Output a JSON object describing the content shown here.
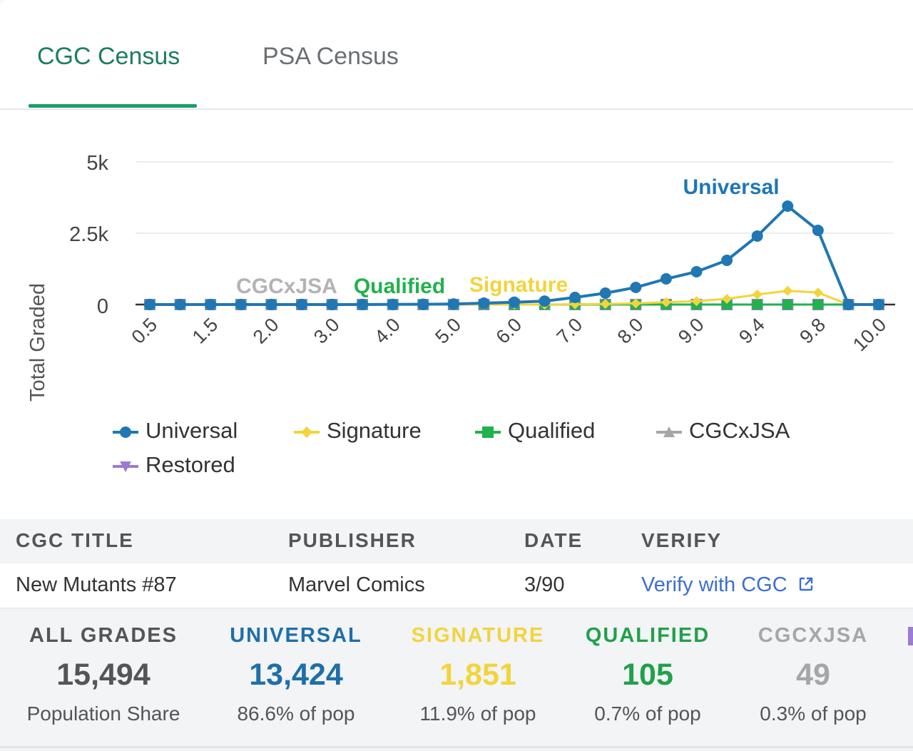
{
  "tabs": [
    {
      "label": "CGC Census",
      "active": true
    },
    {
      "label": "PSA Census",
      "active": false
    }
  ],
  "colors": {
    "universal": "#1f77b4",
    "signature": "#f2d43c",
    "qualified": "#22b14c",
    "cgcxjsa": "#a6a6a6",
    "restored": "#9b7bd4",
    "active_tab": "#1a7f5a"
  },
  "chart_data": {
    "type": "line",
    "ylabel": "Total Graded",
    "yticks": [
      "5k",
      "2.5k",
      "0"
    ],
    "ylim": [
      0,
      5000
    ],
    "x": [
      "0.5",
      "1.0",
      "1.5",
      "1.8",
      "2.0",
      "2.5",
      "3.0",
      "3.5",
      "4.0",
      "4.5",
      "5.0",
      "5.5",
      "6.0",
      "6.5",
      "7.0",
      "7.5",
      "8.0",
      "8.5",
      "9.0",
      "9.2",
      "9.4",
      "9.6",
      "9.8",
      "9.9",
      "10.0"
    ],
    "xtick_labels": [
      "0.5",
      "1.5",
      "2.0",
      "3.0",
      "4.0",
      "5.0",
      "6.0",
      "7.0",
      "8.0",
      "9.0",
      "9.4",
      "9.8",
      "10.0"
    ],
    "series": [
      {
        "name": "Universal",
        "values": [
          0,
          0,
          0,
          0,
          0,
          0,
          0,
          0,
          5,
          10,
          20,
          50,
          80,
          120,
          250,
          400,
          600,
          900,
          1150,
          1550,
          2400,
          3450,
          2600,
          0,
          0
        ]
      },
      {
        "name": "Signature",
        "values": [
          0,
          0,
          0,
          0,
          0,
          0,
          0,
          0,
          0,
          0,
          0,
          0,
          0,
          0,
          10,
          20,
          40,
          80,
          120,
          200,
          350,
          480,
          420,
          0,
          0
        ]
      },
      {
        "name": "Qualified",
        "values": [
          0,
          0,
          0,
          0,
          0,
          0,
          0,
          0,
          0,
          0,
          0,
          0,
          0,
          0,
          0,
          0,
          0,
          0,
          0,
          0,
          0,
          0,
          0,
          0,
          0
        ]
      },
      {
        "name": "CGCxJSA",
        "values": [
          0,
          0,
          0,
          0,
          0,
          0,
          0,
          0,
          0,
          0,
          0,
          0,
          0,
          0,
          0,
          0,
          0,
          0,
          0,
          0,
          0,
          0,
          0,
          0,
          0
        ]
      },
      {
        "name": "Restored",
        "values": [
          0,
          0,
          0,
          0,
          0,
          0,
          0,
          0,
          0,
          0,
          0,
          0,
          0,
          0,
          0,
          0,
          0,
          0,
          0,
          0,
          0,
          0,
          0,
          0,
          0
        ]
      }
    ],
    "annotations": [
      "Universal",
      "Signature",
      "Qualified",
      "CGCxJSA"
    ],
    "legend": [
      "Universal",
      "Signature",
      "Qualified",
      "CGCxJSA",
      "Restored"
    ]
  },
  "table": {
    "headers": [
      "CGC TITLE",
      "PUBLISHER",
      "DATE",
      "VERIFY"
    ],
    "row": {
      "title": "New Mutants #87",
      "publisher": "Marvel Comics",
      "date": "3/90",
      "verify": "Verify with CGC"
    }
  },
  "stats": [
    {
      "label": "ALL GRADES",
      "value": "15,494",
      "sub": "Population Share"
    },
    {
      "label": "UNIVERSAL",
      "value": "13,424",
      "sub": "86.6% of pop"
    },
    {
      "label": "SIGNATURE",
      "value": "1,851",
      "sub": "11.9% of pop"
    },
    {
      "label": "QUALIFIED",
      "value": "105",
      "sub": "0.7% of pop"
    },
    {
      "label": "CGCXJSA",
      "value": "49",
      "sub": "0.3% of pop"
    }
  ]
}
